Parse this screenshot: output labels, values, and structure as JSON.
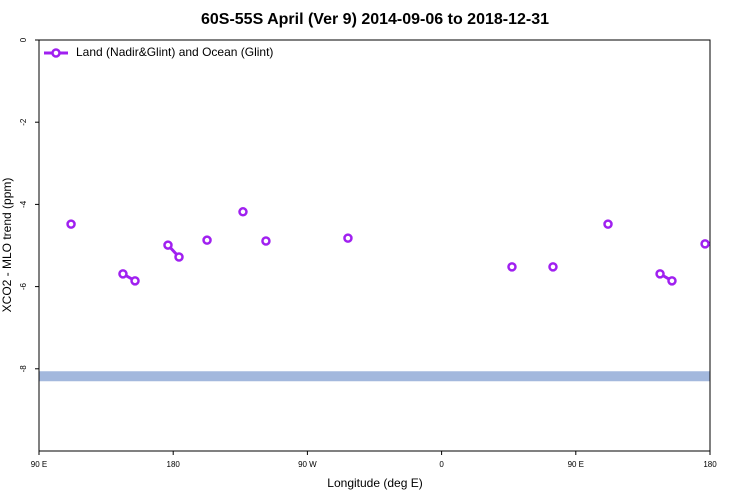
{
  "chart_data": {
    "type": "line",
    "title": "60S-55S April (Ver 9)   2014-09-06 to 2018-12-31",
    "xlabel": "Longitude (deg E)",
    "ylabel": "XCO2 - MLO trend (ppm)",
    "xlim": [
      90,
      540
    ],
    "xticks": [
      {
        "value": 90,
        "label": "90 E"
      },
      180,
      {
        "value": 270,
        "label": "90 W"
      },
      {
        "value": 360,
        "label": "0"
      },
      {
        "value": 450,
        "label": "90 E"
      },
      {
        "value": 540,
        "label": "180"
      }
    ],
    "ylim": [
      -10,
      0
    ],
    "yticks": [
      0,
      -2,
      -4,
      -6,
      -8
    ],
    "legend": "upper left",
    "reference_line": {
      "value": -8.18,
      "color": "#a3b8dd"
    },
    "series": [
      {
        "name": "Land (Nadir&Glint) and Ocean (Glint)",
        "color": "#a020f0",
        "x": [
          111.5,
          146.3,
          154.4,
          176.5,
          183.9,
          202.7,
          226.8,
          242.2,
          297.2,
          407.2,
          434.7,
          471.6,
          506.5,
          514.5,
          536.7
        ],
        "values": [
          -4.48,
          -5.69,
          -5.86,
          -4.99,
          -5.28,
          -4.87,
          -4.18,
          -4.89,
          -4.82,
          -5.52,
          -5.52,
          -4.48,
          -5.69,
          -5.86,
          -4.96
        ]
      }
    ]
  }
}
